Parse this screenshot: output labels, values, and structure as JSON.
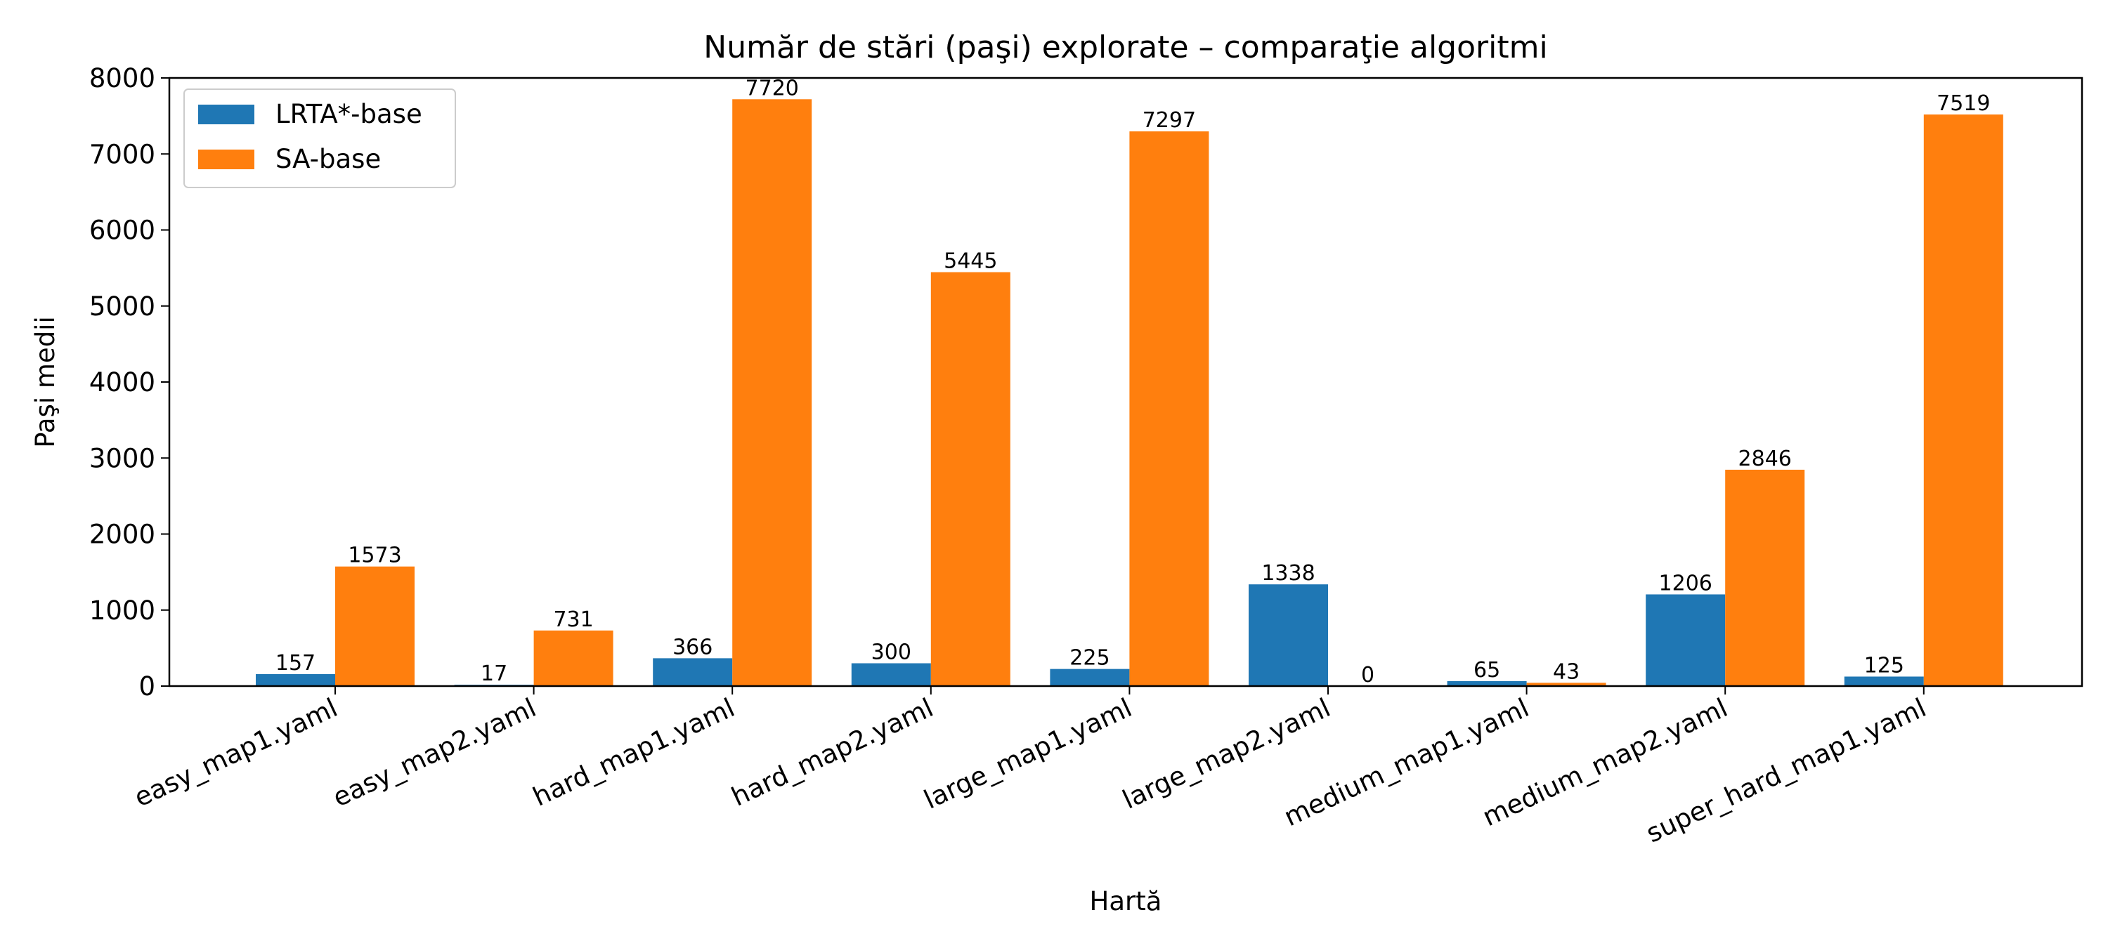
{
  "chart_data": {
    "type": "bar",
    "title": "Număr de stări (paşi) explorate – comparaţie algoritmi",
    "xlabel": "Hartă",
    "ylabel": "Paşi medii",
    "ylim": [
      0,
      8000
    ],
    "yticks": [
      0,
      1000,
      2000,
      3000,
      4000,
      5000,
      6000,
      7000,
      8000
    ],
    "categories": [
      "easy_map1.yaml",
      "easy_map2.yaml",
      "hard_map1.yaml",
      "hard_map2.yaml",
      "large_map1.yaml",
      "large_map2.yaml",
      "medium_map1.yaml",
      "medium_map2.yaml",
      "super_hard_map1.yaml"
    ],
    "series": [
      {
        "name": "LRTA*-base",
        "color": "#1f77b4",
        "values": [
          157,
          17,
          366,
          300,
          225,
          1338,
          65,
          1206,
          125
        ]
      },
      {
        "name": "SA-base",
        "color": "#ff7f0e",
        "values": [
          1573,
          731,
          7720,
          5445,
          7297,
          0,
          43,
          2846,
          7519
        ]
      }
    ],
    "legend_position": "top-left",
    "grid": false
  }
}
